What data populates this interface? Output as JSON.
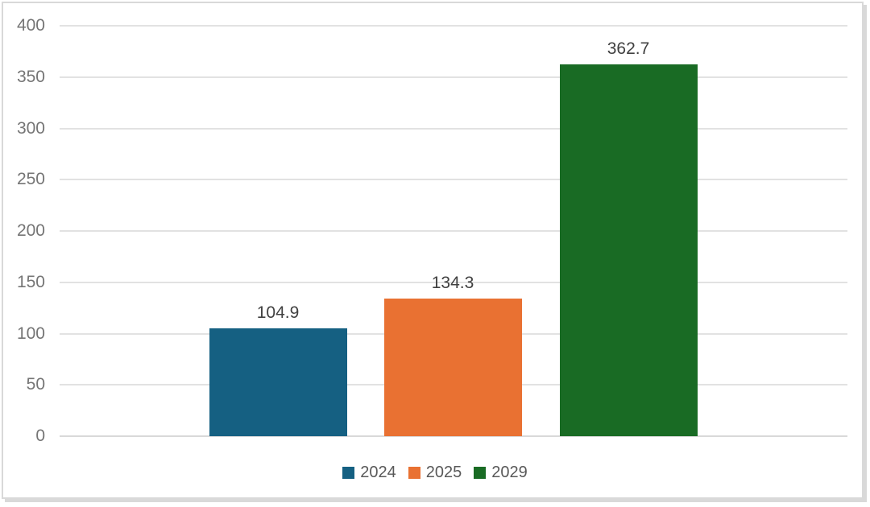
{
  "chart_data": {
    "type": "bar",
    "categories": [
      "2024",
      "2025",
      "2029"
    ],
    "values": [
      104.9,
      134.3,
      362.7
    ],
    "value_labels": [
      "104.9",
      "134.3",
      "362.7"
    ],
    "series_colors": [
      "#156082",
      "#E97132",
      "#196B24"
    ],
    "title": "",
    "xlabel": "",
    "ylabel": "",
    "ylim": [
      0,
      400
    ],
    "ytick_labels": [
      "0",
      "50",
      "100",
      "150",
      "200",
      "250",
      "300",
      "350",
      "400"
    ],
    "ytick_values": [
      0,
      50,
      100,
      150,
      200,
      250,
      300,
      350,
      400
    ],
    "grid": true,
    "legend_position": "bottom",
    "legend_entries": [
      "2024",
      "2025",
      "2029"
    ]
  },
  "style_colors": {
    "background": "#ffffff",
    "frame_border": "#d9d9d9",
    "gridline": "#e2e2e2",
    "axis_label_text": "#757575",
    "value_label_text": "#404040",
    "legend_text": "#595959"
  }
}
